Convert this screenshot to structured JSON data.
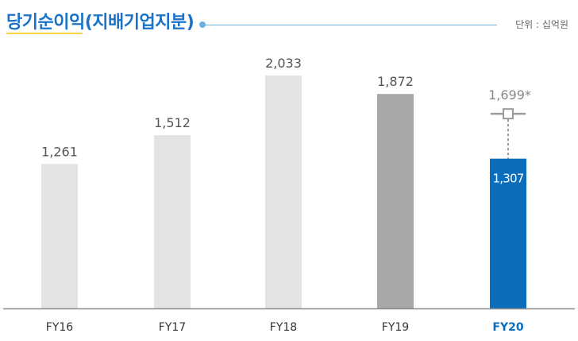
{
  "header": {
    "title": "당기순이익(지배기업지분)",
    "unit": "단위 : 십억원"
  },
  "colors": {
    "title": "#1a73c8",
    "bar_past": "#e3e3e3",
    "bar_prev": "#a8a8a8",
    "bar_current": "#0a6ebd",
    "marker": "#9a9a9a"
  },
  "chart_data": {
    "type": "bar",
    "categories": [
      "FY16",
      "FY17",
      "FY18",
      "FY19",
      "FY20"
    ],
    "values": [
      1261,
      1512,
      2033,
      1872,
      1307
    ],
    "value_labels": [
      "1,261",
      "1,512",
      "2,033",
      "1,872",
      "1,307"
    ],
    "highlight_index": 4,
    "title": "당기순이익(지배기업지분)",
    "xlabel": "",
    "ylabel": "",
    "ylim": [
      0,
      2150
    ],
    "annotations": [
      {
        "category": "FY20",
        "value": 1699,
        "label": "1,699*"
      }
    ],
    "grid": false
  }
}
